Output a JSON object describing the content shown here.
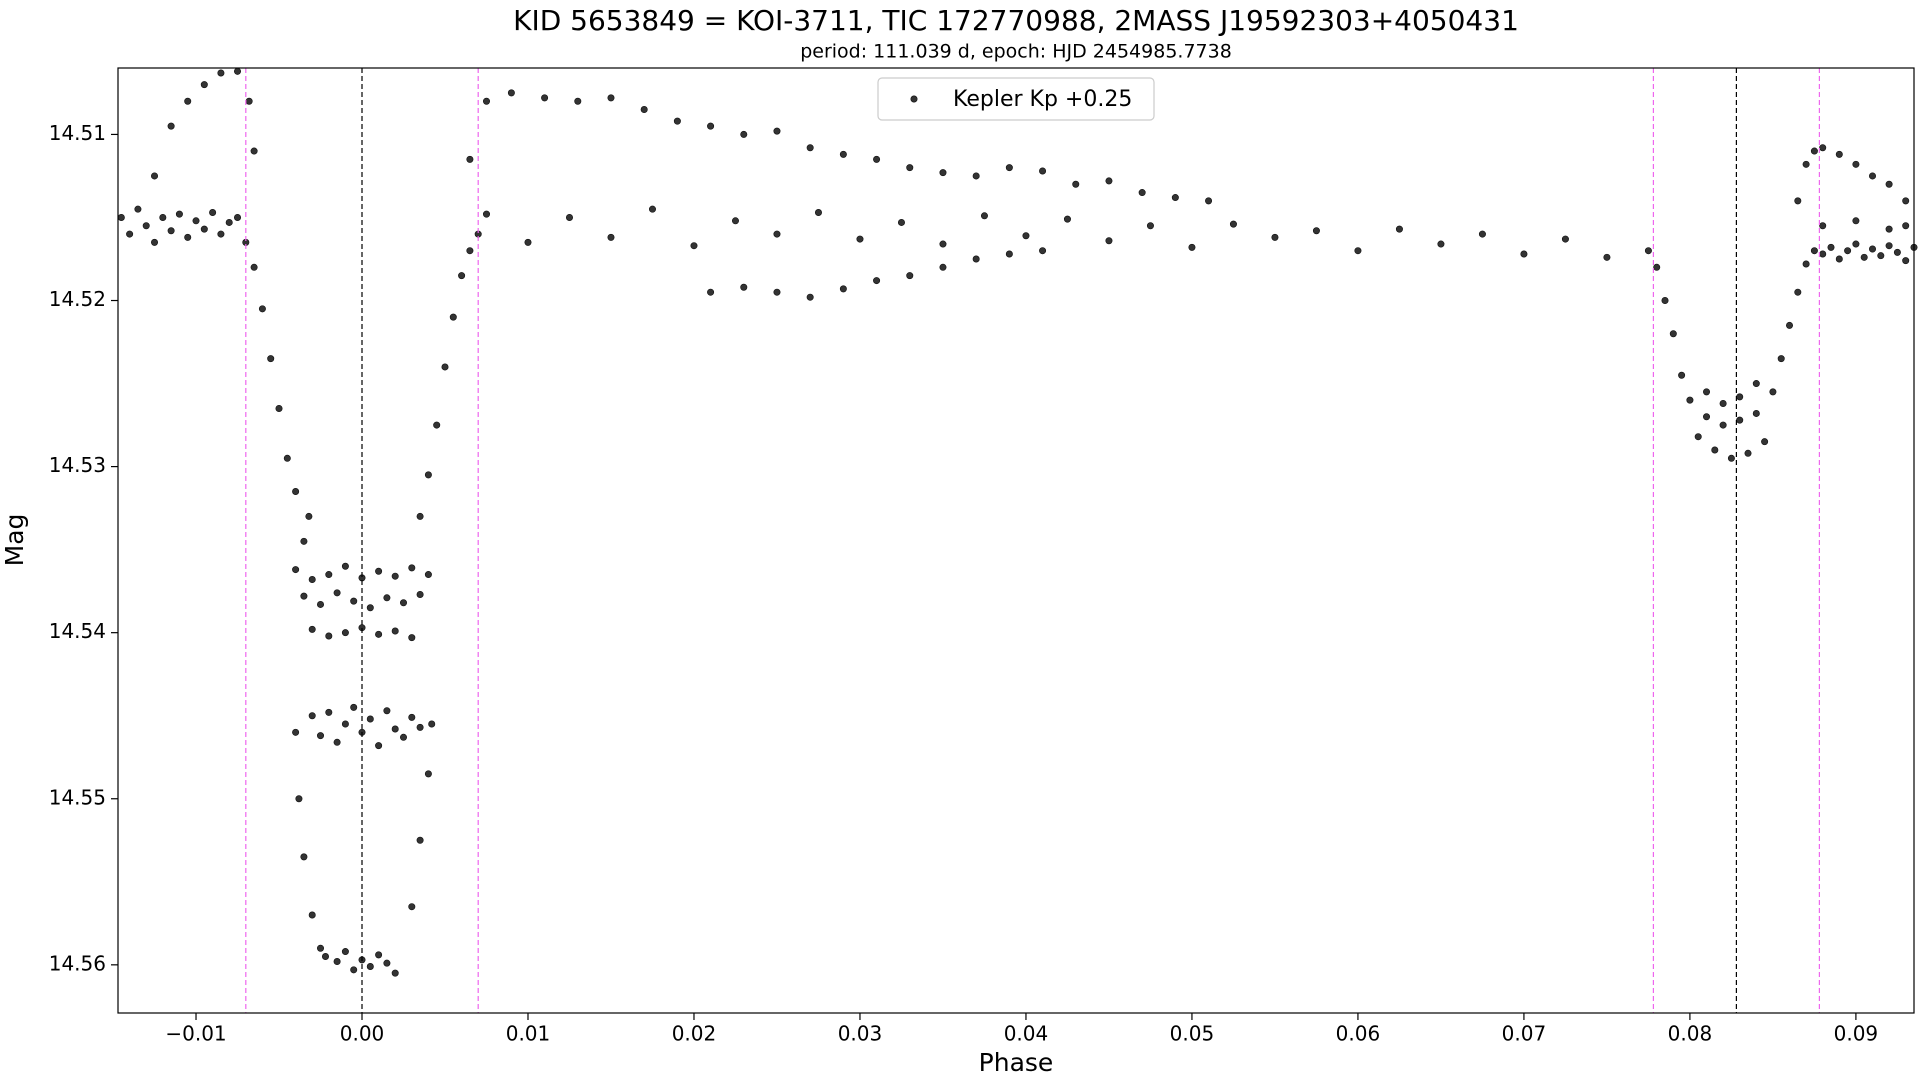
{
  "chart_data": {
    "type": "scatter",
    "title": "KID 5653849 = KOI-3711, TIC 172770988, 2MASS J19592303+4050431",
    "subtitle": "period: 111.039 d, epoch: HJD 2454985.7738",
    "xlabel": "Phase",
    "ylabel": "Mag",
    "xlim": [
      -0.0147,
      0.0935
    ],
    "ylim": [
      14.5629,
      14.506
    ],
    "xticks": [
      {
        "value": -0.01,
        "label": "−0.01"
      },
      {
        "value": 0,
        "label": "0.00"
      },
      0.01,
      0.02,
      0.03,
      0.04,
      0.05,
      0.06,
      0.07,
      0.08,
      0.09
    ],
    "yticks": [
      14.51,
      14.52,
      14.53,
      14.54,
      14.55,
      14.56
    ],
    "legend": "upper center",
    "vlines": [
      {
        "x": 0,
        "color": "#000000"
      },
      {
        "x": 0.0828,
        "color": "#000000"
      },
      {
        "x": -0.007,
        "color": "#ee66ee"
      },
      {
        "x": 0.007,
        "color": "#ee66ee"
      },
      {
        "x": 0.0778,
        "color": "#ee66ee"
      },
      {
        "x": 0.0878,
        "color": "#ee66ee"
      }
    ],
    "series": [
      {
        "name": "Kepler Kp +0.25",
        "color": "#333333",
        "x": [
          -0.0145,
          -0.014,
          -0.0135,
          -0.013,
          -0.0125,
          -0.012,
          -0.0115,
          -0.011,
          -0.0105,
          -0.01,
          -0.0095,
          -0.009,
          -0.0085,
          -0.008,
          -0.0075,
          -0.0125,
          -0.0115,
          -0.0105,
          -0.0095,
          -0.0085,
          -0.0075,
          -0.0068,
          -0.0065,
          -0.007,
          -0.0065,
          -0.006,
          -0.0055,
          -0.005,
          -0.0045,
          -0.004,
          -0.0035,
          -0.0032,
          -0.004,
          -0.0038,
          -0.0035,
          -0.003,
          -0.0025,
          -0.004,
          -0.003,
          -0.002,
          -0.001,
          0,
          0.001,
          0.002,
          0.003,
          0.004,
          -0.0035,
          -0.0025,
          -0.0015,
          -0.0005,
          0.0005,
          0.0015,
          0.0025,
          0.0035,
          -0.003,
          -0.002,
          -0.001,
          0,
          0.001,
          0.002,
          0.003,
          -0.003,
          -0.0025,
          -0.002,
          -0.0015,
          -0.001,
          -0.0005,
          0,
          0.0005,
          0.001,
          0.0015,
          0.002,
          0.0025,
          0.003,
          0.0035,
          -0.0022,
          -0.0015,
          -0.001,
          -0.0005,
          0,
          0.0005,
          0.001,
          0.0015,
          0.002,
          0.0035,
          0.004,
          0.0045,
          0.005,
          0.0055,
          0.006,
          0.0065,
          0.007,
          0.003,
          0.0035,
          0.004,
          0.0042,
          0.0065,
          0.0075,
          0.009,
          0.011,
          0.013,
          0.015,
          0.017,
          0.019,
          0.021,
          0.023,
          0.025,
          0.027,
          0.029,
          0.031,
          0.033,
          0.035,
          0.037,
          0.039,
          0.041,
          0.043,
          0.045,
          0.047,
          0.049,
          0.051,
          0.021,
          0.023,
          0.025,
          0.027,
          0.029,
          0.031,
          0.033,
          0.035,
          0.037,
          0.039,
          0.041,
          0.0075,
          0.01,
          0.0125,
          0.015,
          0.0175,
          0.02,
          0.0225,
          0.025,
          0.0275,
          0.03,
          0.0325,
          0.035,
          0.0375,
          0.04,
          0.0425,
          0.045,
          0.0475,
          0.05,
          0.0525,
          0.055,
          0.0575,
          0.06,
          0.0625,
          0.065,
          0.0675,
          0.07,
          0.0725,
          0.075,
          0.0775,
          0.078,
          0.0785,
          0.079,
          0.0795,
          0.08,
          0.081,
          0.082,
          0.083,
          0.084,
          0.085,
          0.0855,
          0.086,
          0.0865,
          0.087,
          0.0875,
          0.0805,
          0.0815,
          0.0825,
          0.0835,
          0.0845,
          0.081,
          0.082,
          0.083,
          0.084,
          0.088,
          0.0885,
          0.089,
          0.0895,
          0.09,
          0.0905,
          0.091,
          0.0915,
          0.092,
          0.0925,
          0.093,
          0.0935,
          0.0865,
          0.087,
          0.0875,
          0.088,
          0.089,
          0.09,
          0.091,
          0.092,
          0.093,
          0.088,
          0.09,
          0.092,
          0.093
        ],
        "values": [
          14.515,
          14.516,
          14.5145,
          14.5155,
          14.5165,
          14.515,
          14.5158,
          14.5148,
          14.5162,
          14.5152,
          14.5157,
          14.5147,
          14.516,
          14.5153,
          14.515,
          14.5125,
          14.5095,
          14.508,
          14.507,
          14.5063,
          14.5062,
          14.508,
          14.511,
          14.5165,
          14.518,
          14.5205,
          14.5235,
          14.5265,
          14.5295,
          14.5315,
          14.5345,
          14.533,
          14.546,
          14.55,
          14.5535,
          14.557,
          14.559,
          14.5362,
          14.5368,
          14.5365,
          14.536,
          14.5367,
          14.5363,
          14.5366,
          14.5361,
          14.5365,
          14.5378,
          14.5383,
          14.5376,
          14.5381,
          14.5385,
          14.5379,
          14.5382,
          14.5377,
          14.5398,
          14.5402,
          14.54,
          14.5397,
          14.5401,
          14.5399,
          14.5403,
          14.545,
          14.5462,
          14.5448,
          14.5466,
          14.5455,
          14.5445,
          14.546,
          14.5452,
          14.5468,
          14.5447,
          14.5458,
          14.5463,
          14.5451,
          14.5457,
          14.5595,
          14.5598,
          14.5592,
          14.5603,
          14.5597,
          14.5601,
          14.5594,
          14.5599,
          14.5605,
          14.533,
          14.5305,
          14.5275,
          14.524,
          14.521,
          14.5185,
          14.517,
          14.516,
          14.5565,
          14.5525,
          14.5485,
          14.5455,
          14.5115,
          14.508,
          14.5075,
          14.5078,
          14.508,
          14.5078,
          14.5085,
          14.5092,
          14.5095,
          14.51,
          14.5098,
          14.5108,
          14.5112,
          14.5115,
          14.512,
          14.5123,
          14.5125,
          14.512,
          14.5122,
          14.513,
          14.5128,
          14.5135,
          14.5138,
          14.514,
          14.5195,
          14.5192,
          14.5195,
          14.5198,
          14.5193,
          14.5188,
          14.5185,
          14.518,
          14.5175,
          14.5172,
          14.517,
          14.5148,
          14.5165,
          14.515,
          14.5162,
          14.5145,
          14.5167,
          14.5152,
          14.516,
          14.5147,
          14.5163,
          14.5153,
          14.5166,
          14.5149,
          14.5161,
          14.5151,
          14.5164,
          14.5155,
          14.5168,
          14.5154,
          14.5162,
          14.5158,
          14.517,
          14.5157,
          14.5166,
          14.516,
          14.5172,
          14.5163,
          14.5174,
          14.517,
          14.518,
          14.52,
          14.522,
          14.5245,
          14.526,
          14.527,
          14.5275,
          14.5272,
          14.5268,
          14.5255,
          14.5235,
          14.5215,
          14.5195,
          14.5178,
          14.517,
          14.5282,
          14.529,
          14.5295,
          14.5292,
          14.5285,
          14.5255,
          14.5262,
          14.5258,
          14.525,
          14.5172,
          14.5168,
          14.5175,
          14.517,
          14.5166,
          14.5174,
          14.5169,
          14.5173,
          14.5167,
          14.5171,
          14.5176,
          14.5168,
          14.514,
          14.5118,
          14.511,
          14.5108,
          14.5112,
          14.5118,
          14.5125,
          14.513,
          14.514,
          14.5155,
          14.5152,
          14.5157,
          14.5155
        ]
      }
    ]
  }
}
